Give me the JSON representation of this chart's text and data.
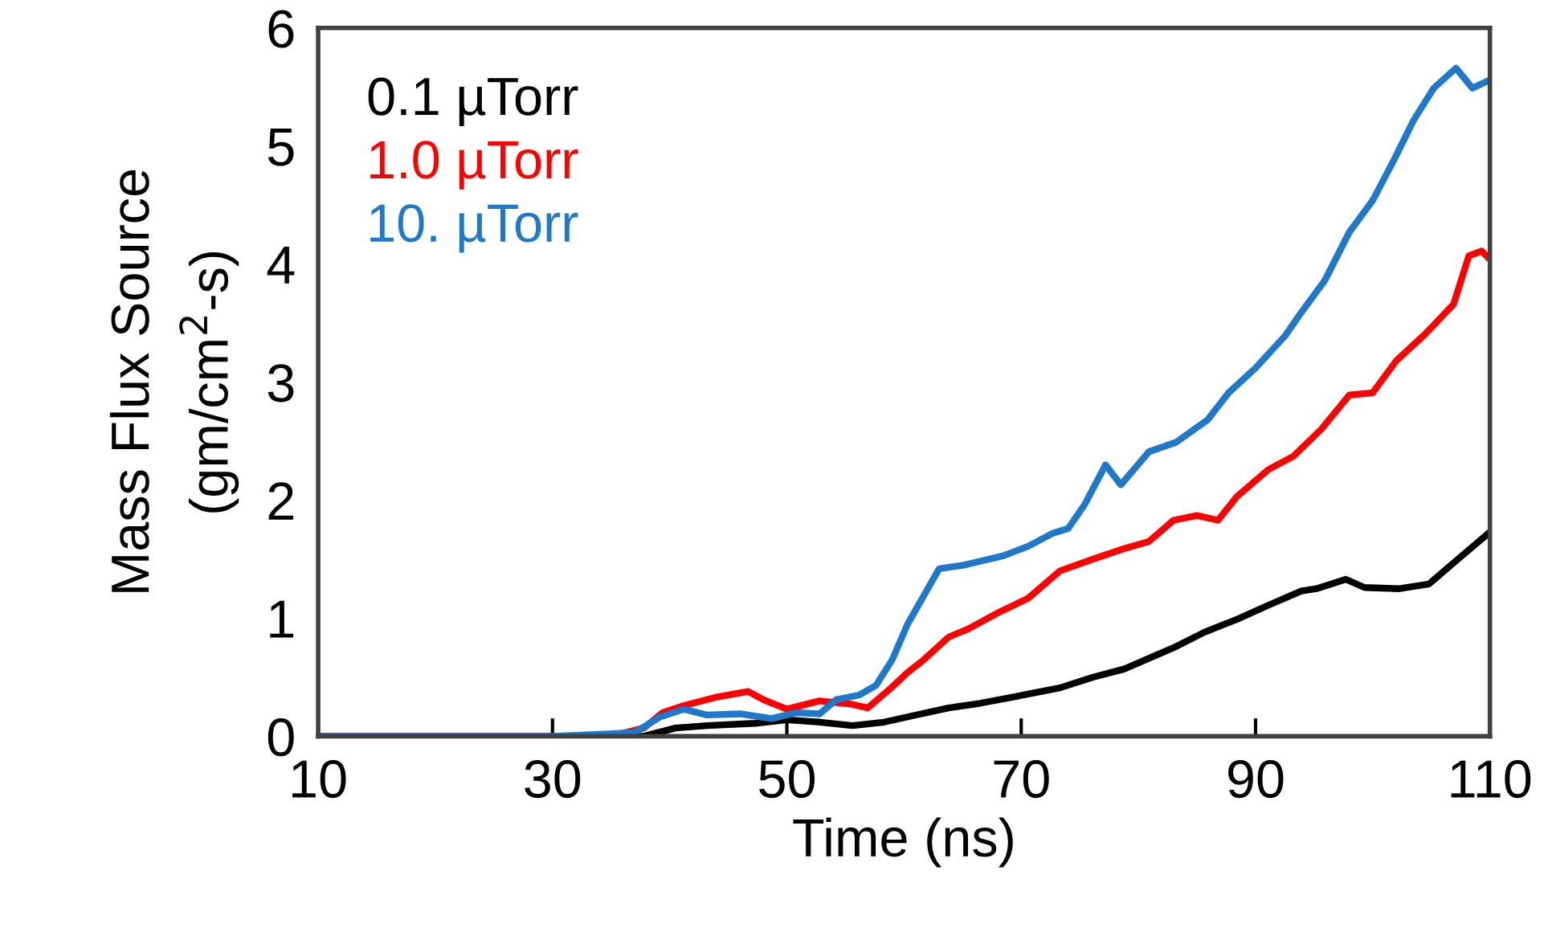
{
  "chart_data": {
    "type": "line",
    "xlabel": "Time (ns)",
    "ylabel": "Mass Flux Source\n(gm/cm$^{2}$-s)",
    "xlim": [
      10,
      110
    ],
    "ylim": [
      0,
      6
    ],
    "xticks": [
      10,
      30,
      50,
      70,
      90,
      110
    ],
    "yticks": [
      0,
      1,
      2,
      3,
      4,
      5,
      6
    ],
    "grid": false,
    "legend": "top left",
    "marker": "none",
    "line_style": "solid",
    "series": [
      {
        "name": "0.1 µTorr",
        "color": "#000000",
        "x": [
          10,
          37.8,
          40.5,
          43.2,
          47.3,
          50,
          52.8,
          55.6,
          58.3,
          61,
          63.8,
          66.5,
          69.2,
          73.3,
          76.1,
          78.8,
          83,
          85.6,
          88.4,
          91.1,
          93.9,
          95.2,
          97.7,
          99.3,
          102.3,
          104.8,
          107.5,
          110
        ],
        "values": [
          0,
          0,
          0.07,
          0.09,
          0.11,
          0.14,
          0.12,
          0.09,
          0.12,
          0.18,
          0.24,
          0.28,
          0.33,
          0.41,
          0.5,
          0.57,
          0.75,
          0.88,
          0.99,
          1.11,
          1.23,
          1.25,
          1.33,
          1.26,
          1.25,
          1.29,
          1.52,
          1.73
        ]
      },
      {
        "name": "1.0 µTorr",
        "color": "#ff0000",
        "x": [
          10,
          35,
          37.8,
          39.4,
          41.2,
          43.9,
          46.7,
          48,
          50,
          52.8,
          55.6,
          56.9,
          58.9,
          60.3,
          61.7,
          63.8,
          65.5,
          67.9,
          70.6,
          73.3,
          76.1,
          78.8,
          80.9,
          83,
          85,
          86.8,
          88.4,
          91.1,
          93.2,
          95.6,
          98,
          100,
          102,
          104.5,
          106.9,
          108.2,
          109.3,
          110
        ],
        "values": [
          0,
          0,
          0.07,
          0.2,
          0.26,
          0.33,
          0.38,
          0.31,
          0.23,
          0.3,
          0.27,
          0.24,
          0.41,
          0.54,
          0.65,
          0.84,
          0.91,
          1.04,
          1.17,
          1.4,
          1.5,
          1.59,
          1.65,
          1.83,
          1.87,
          1.83,
          2.03,
          2.26,
          2.37,
          2.6,
          2.89,
          2.91,
          3.18,
          3.41,
          3.66,
          4.07,
          4.11,
          4.04
        ]
      },
      {
        "name": "10. µTorr",
        "color": "#1f78c8",
        "x": [
          10,
          30,
          37,
          39.1,
          41.2,
          43.2,
          46,
          48.7,
          50.8,
          52.8,
          54.2,
          56.2,
          57.6,
          59,
          60.3,
          63,
          65.1,
          66.8,
          68.5,
          70.6,
          72.7,
          74,
          75.4,
          77.2,
          78.5,
          80.9,
          83.2,
          85.9,
          87.7,
          90,
          92.5,
          93.9,
          95.9,
          98,
          100,
          101.8,
          103.5,
          105.2,
          107.1,
          108.5,
          110
        ],
        "values": [
          0,
          0,
          0.03,
          0.16,
          0.23,
          0.18,
          0.19,
          0.15,
          0.2,
          0.19,
          0.31,
          0.35,
          0.43,
          0.65,
          0.95,
          1.42,
          1.45,
          1.49,
          1.53,
          1.61,
          1.72,
          1.76,
          1.96,
          2.3,
          2.13,
          2.41,
          2.49,
          2.68,
          2.91,
          3.12,
          3.39,
          3.59,
          3.86,
          4.27,
          4.54,
          4.88,
          5.22,
          5.49,
          5.66,
          5.49,
          5.56
        ]
      }
    ]
  }
}
